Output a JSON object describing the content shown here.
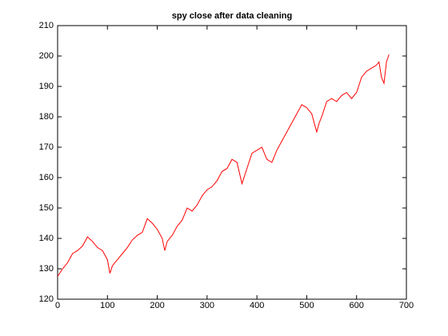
{
  "chart_data": {
    "type": "line",
    "title": "spy close after data cleaning",
    "x": [
      0,
      10,
      20,
      30,
      40,
      50,
      60,
      70,
      80,
      90,
      100,
      105,
      110,
      120,
      130,
      140,
      150,
      160,
      170,
      180,
      190,
      200,
      210,
      215,
      220,
      230,
      240,
      250,
      260,
      270,
      280,
      290,
      300,
      310,
      320,
      330,
      340,
      350,
      360,
      370,
      380,
      390,
      400,
      410,
      420,
      430,
      440,
      450,
      460,
      470,
      480,
      490,
      500,
      510,
      520,
      525,
      530,
      540,
      550,
      560,
      570,
      580,
      590,
      600,
      610,
      620,
      630,
      640,
      645,
      650,
      655,
      660,
      665
    ],
    "series": [
      {
        "name": "spy close",
        "color": "#ff0000",
        "values": [
          127.5,
          130,
          132,
          135,
          136,
          137.5,
          140.5,
          139,
          137,
          136,
          133,
          128.5,
          131,
          133,
          135,
          137,
          139.5,
          141,
          142,
          146.5,
          145,
          143,
          140,
          136,
          139,
          141,
          144,
          146,
          150,
          149,
          151,
          154,
          156,
          157,
          159,
          162,
          163,
          166,
          165,
          158,
          163,
          168,
          169,
          170,
          166,
          165,
          169,
          172,
          175,
          178,
          181,
          184,
          183,
          181,
          175,
          178,
          180,
          185,
          186,
          185,
          187,
          188,
          186,
          188,
          193,
          195,
          196,
          197,
          198,
          193,
          191,
          198,
          200.5
        ]
      }
    ],
    "xlim": [
      0,
      700
    ],
    "xticks": [
      0,
      100,
      200,
      300,
      400,
      500,
      600,
      700
    ],
    "ylim": [
      120,
      210
    ],
    "yticks": [
      120,
      130,
      140,
      150,
      160,
      170,
      180,
      190,
      200,
      210
    ]
  }
}
